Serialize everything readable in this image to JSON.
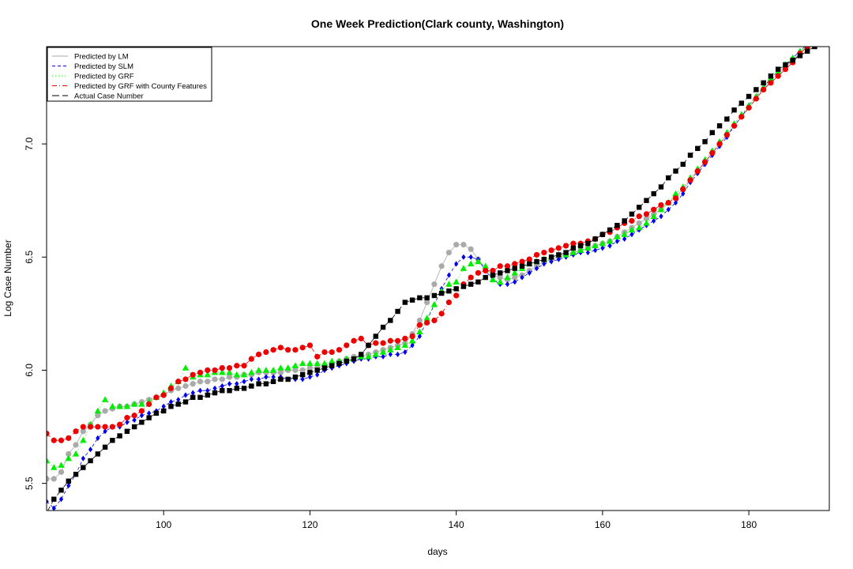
{
  "chart_data": {
    "type": "scatter",
    "title": "One Week Prediction(Clark county, Washington)",
    "xlabel": "days",
    "ylabel": "Log Case Number",
    "xlim": [
      84,
      191
    ],
    "ylim": [
      5.38,
      7.43
    ],
    "xticks": [
      100,
      120,
      140,
      160,
      180
    ],
    "yticks": [
      5.5,
      6.0,
      6.5,
      7.0
    ],
    "xtick_labels": [
      "100",
      "120",
      "140",
      "160",
      "180"
    ],
    "ytick_labels": [
      "5.5",
      "6.0",
      "6.5",
      "7.0"
    ],
    "legend_position": "top-left",
    "x": [
      84,
      85,
      86,
      87,
      88,
      89,
      90,
      91,
      92,
      93,
      94,
      95,
      96,
      97,
      98,
      99,
      100,
      101,
      102,
      103,
      104,
      105,
      106,
      107,
      108,
      109,
      110,
      111,
      112,
      113,
      114,
      115,
      116,
      117,
      118,
      119,
      120,
      121,
      122,
      123,
      124,
      125,
      126,
      127,
      128,
      129,
      130,
      131,
      132,
      133,
      134,
      135,
      136,
      137,
      138,
      139,
      140,
      141,
      142,
      143,
      144,
      145,
      146,
      147,
      148,
      149,
      150,
      151,
      152,
      153,
      154,
      155,
      156,
      157,
      158,
      159,
      160,
      161,
      162,
      163,
      164,
      165,
      166,
      167,
      168,
      169,
      170,
      171,
      172,
      173,
      174,
      175,
      176,
      177,
      178,
      179,
      180,
      181,
      182,
      183,
      184,
      185,
      186,
      187,
      188,
      189,
      190,
      191
    ],
    "series": [
      {
        "name": "Predicted by LM",
        "color": "#aaaaaa",
        "line": "solid",
        "marker": "circle",
        "values": [
          5.52,
          5.52,
          5.55,
          5.63,
          5.67,
          5.73,
          5.76,
          5.8,
          5.82,
          5.83,
          5.84,
          5.84,
          5.85,
          5.86,
          5.87,
          5.88,
          5.89,
          5.91,
          5.92,
          5.93,
          5.94,
          5.95,
          5.95,
          5.96,
          5.96,
          5.97,
          5.97,
          5.98,
          5.98,
          5.99,
          5.99,
          5.99,
          5.99,
          6.0,
          6.0,
          6.0,
          6.01,
          6.01,
          6.02,
          6.03,
          6.04,
          6.05,
          6.06,
          6.06,
          6.07,
          6.08,
          6.09,
          6.1,
          6.11,
          6.12,
          6.16,
          6.22,
          6.3,
          6.38,
          6.46,
          6.52,
          6.555,
          6.555,
          6.535,
          6.49,
          6.45,
          6.42,
          6.41,
          6.4,
          6.41,
          6.42,
          6.44,
          6.46,
          6.48,
          6.49,
          6.5,
          6.51,
          6.52,
          6.53,
          6.54,
          6.55,
          6.56,
          6.57,
          6.59,
          6.61,
          6.63,
          6.65,
          6.67,
          6.69,
          6.71,
          6.74,
          6.77,
          6.8,
          6.84,
          6.88,
          6.92,
          6.96,
          7.0,
          7.04,
          7.08,
          7.12,
          7.16,
          7.2,
          7.24,
          7.28,
          7.31,
          7.34,
          7.37,
          7.4,
          7.43,
          7.46,
          7.48,
          7.5
        ]
      },
      {
        "name": "Predicted by SLM",
        "color": "#0000ee",
        "line": "dashed",
        "marker": "diamond",
        "values": [
          5.42,
          5.39,
          5.43,
          5.49,
          5.54,
          5.61,
          5.65,
          5.7,
          5.73,
          5.75,
          5.75,
          5.77,
          5.78,
          5.8,
          5.81,
          5.82,
          5.84,
          5.86,
          5.87,
          5.89,
          5.9,
          5.91,
          5.91,
          5.92,
          5.93,
          5.94,
          5.94,
          5.95,
          5.96,
          5.96,
          5.97,
          5.97,
          5.97,
          5.96,
          5.96,
          5.96,
          5.97,
          5.98,
          6.0,
          6.01,
          6.02,
          6.03,
          6.04,
          6.05,
          6.05,
          6.06,
          6.06,
          6.07,
          6.07,
          6.08,
          6.11,
          6.15,
          6.22,
          6.29,
          6.36,
          6.42,
          6.47,
          6.5,
          6.5,
          6.49,
          6.44,
          6.4,
          6.38,
          6.38,
          6.39,
          6.41,
          6.43,
          6.45,
          6.47,
          6.48,
          6.49,
          6.5,
          6.51,
          6.52,
          6.52,
          6.53,
          6.54,
          6.55,
          6.57,
          6.58,
          6.6,
          6.62,
          6.64,
          6.66,
          6.68,
          6.71,
          6.74,
          6.78,
          6.83,
          6.87,
          6.91,
          6.95,
          6.99,
          7.03,
          7.08,
          7.12,
          7.17,
          7.21,
          7.25,
          7.29,
          7.32,
          7.35,
          7.38,
          7.41,
          7.44,
          7.46,
          7.48,
          7.5
        ]
      },
      {
        "name": "Predicted by GRF",
        "color": "#00ee00",
        "line": "dotted",
        "marker": "triangle",
        "values": [
          5.6,
          5.57,
          5.58,
          5.61,
          5.63,
          5.69,
          5.76,
          5.82,
          5.87,
          5.84,
          5.84,
          5.84,
          5.85,
          5.85,
          5.86,
          5.88,
          5.9,
          5.93,
          5.95,
          6.01,
          5.97,
          5.98,
          5.98,
          5.99,
          5.99,
          5.99,
          5.98,
          5.98,
          5.99,
          6.0,
          6.0,
          6.0,
          6.01,
          6.01,
          6.02,
          6.03,
          6.03,
          6.03,
          6.03,
          6.04,
          6.04,
          6.05,
          6.05,
          6.06,
          6.06,
          6.07,
          6.08,
          6.09,
          6.1,
          6.11,
          6.13,
          6.17,
          6.23,
          6.29,
          6.35,
          6.38,
          6.39,
          6.45,
          6.47,
          6.48,
          6.46,
          6.4,
          6.39,
          6.41,
          6.43,
          6.45,
          6.47,
          6.48,
          6.49,
          6.5,
          6.51,
          6.51,
          6.52,
          6.53,
          6.54,
          6.55,
          6.56,
          6.57,
          6.59,
          6.6,
          6.62,
          6.63,
          6.65,
          6.68,
          6.71,
          6.74,
          6.78,
          6.81,
          6.85,
          6.89,
          6.93,
          6.97,
          7.01,
          7.05,
          7.09,
          7.13,
          7.17,
          7.21,
          7.25,
          7.29,
          7.32,
          7.35,
          7.38,
          7.41,
          7.43,
          7.45,
          7.47,
          7.49
        ]
      },
      {
        "name": "Predicted by GRF with County Features",
        "color": "#ee0000",
        "line": "dashdot",
        "marker": "circle",
        "values": [
          5.72,
          5.69,
          5.69,
          5.7,
          5.73,
          5.75,
          5.75,
          5.75,
          5.75,
          5.75,
          5.76,
          5.79,
          5.8,
          5.82,
          5.85,
          5.88,
          5.89,
          5.92,
          5.95,
          5.96,
          5.98,
          5.99,
          6.0,
          6.0,
          6.01,
          6.01,
          6.02,
          6.02,
          6.05,
          6.07,
          6.08,
          6.09,
          6.1,
          6.09,
          6.09,
          6.1,
          6.11,
          6.06,
          6.08,
          6.08,
          6.09,
          6.11,
          6.13,
          6.14,
          6.11,
          6.12,
          6.12,
          6.13,
          6.13,
          6.14,
          6.15,
          6.2,
          6.21,
          6.22,
          6.25,
          6.3,
          6.33,
          6.38,
          6.41,
          6.43,
          6.44,
          6.44,
          6.46,
          6.46,
          6.47,
          6.48,
          6.49,
          6.51,
          6.52,
          6.53,
          6.54,
          6.55,
          6.56,
          6.56,
          6.57,
          6.58,
          6.6,
          6.61,
          6.63,
          6.65,
          6.66,
          6.68,
          6.69,
          6.71,
          6.73,
          6.74,
          6.76,
          6.8,
          6.84,
          6.88,
          6.92,
          6.96,
          7.0,
          7.04,
          7.08,
          7.12,
          7.16,
          7.2,
          7.24,
          7.27,
          7.3,
          7.33,
          7.36,
          7.4,
          7.43,
          7.46,
          7.48,
          7.5
        ]
      },
      {
        "name": "Actual Case Number",
        "color": "#000000",
        "line": "longdash",
        "marker": "square",
        "values": [
          5.37,
          5.43,
          5.47,
          5.51,
          5.54,
          5.57,
          5.6,
          5.63,
          5.66,
          5.69,
          5.71,
          5.73,
          5.75,
          5.77,
          5.79,
          5.81,
          5.82,
          5.84,
          5.85,
          5.86,
          5.88,
          5.88,
          5.89,
          5.9,
          5.91,
          5.91,
          5.92,
          5.92,
          5.93,
          5.94,
          5.94,
          5.95,
          5.96,
          5.96,
          5.97,
          5.98,
          5.99,
          6.0,
          6.01,
          6.02,
          6.03,
          6.04,
          6.05,
          6.07,
          6.11,
          6.15,
          6.19,
          6.22,
          6.26,
          6.3,
          6.31,
          6.32,
          6.32,
          6.33,
          6.34,
          6.35,
          6.36,
          6.37,
          6.38,
          6.39,
          6.41,
          6.42,
          6.43,
          6.44,
          6.45,
          6.46,
          6.47,
          6.48,
          6.49,
          6.5,
          6.51,
          6.52,
          6.54,
          6.55,
          6.56,
          6.58,
          6.6,
          6.62,
          6.64,
          6.66,
          6.69,
          6.72,
          6.75,
          6.78,
          6.81,
          6.85,
          6.88,
          6.91,
          6.95,
          6.98,
          7.01,
          7.05,
          7.08,
          7.11,
          7.15,
          7.18,
          7.21,
          7.24,
          7.27,
          7.3,
          7.33,
          7.35,
          7.37,
          7.39,
          7.41,
          7.43,
          7.45,
          7.47
        ]
      }
    ]
  }
}
